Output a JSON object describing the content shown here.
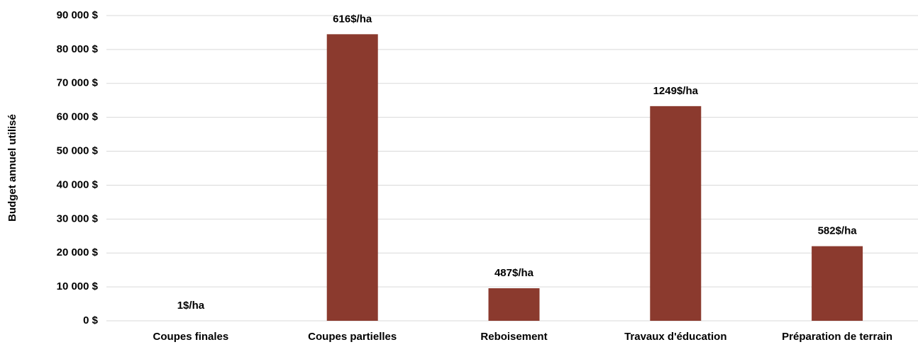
{
  "chart_data": {
    "type": "bar",
    "y_axis_label": "Budget annuel utilisé",
    "categories": [
      "Coupes finales",
      "Coupes partielles",
      "Reboisement",
      "Travaux d'éducation",
      "Préparation de terrain"
    ],
    "values": [
      0,
      84500,
      9600,
      63300,
      22000
    ],
    "annotations": [
      "1$/ha",
      "616$/ha",
      "487$/ha",
      "1249$/ha",
      "582$/ha"
    ],
    "color": "#8b3a2e",
    "ylim": [
      0,
      90000
    ],
    "yticks": [
      {
        "value": 0,
        "label": "0 $"
      },
      {
        "value": 10000,
        "label": "10 000 $"
      },
      {
        "value": 20000,
        "label": "20 000 $"
      },
      {
        "value": 30000,
        "label": "30 000 $"
      },
      {
        "value": 40000,
        "label": "40 000 $"
      },
      {
        "value": 50000,
        "label": "50 000 $"
      },
      {
        "value": 60000,
        "label": "60 000 $"
      },
      {
        "value": 70000,
        "label": "70 000 $"
      },
      {
        "value": 80000,
        "label": "80 000 $"
      },
      {
        "value": 90000,
        "label": "90 000 $"
      }
    ],
    "grid": true
  }
}
